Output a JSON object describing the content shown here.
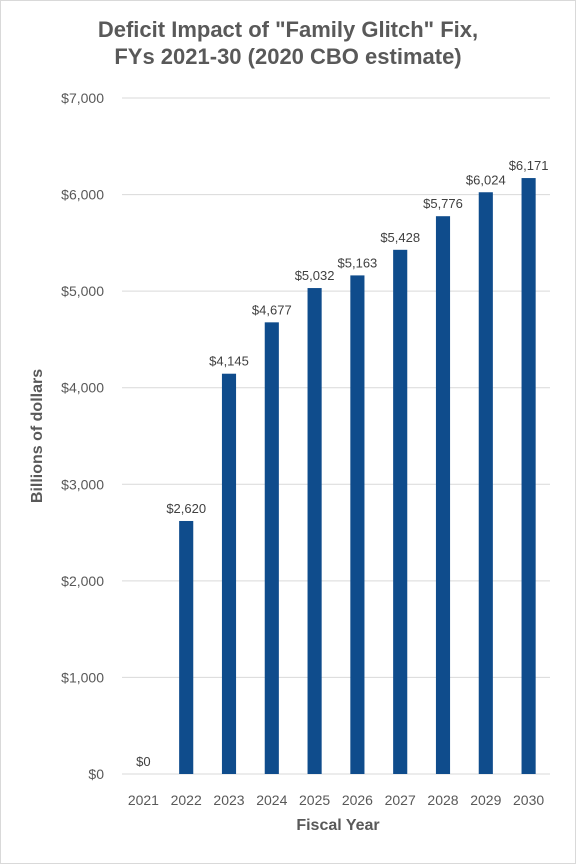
{
  "chart_data": {
    "type": "bar",
    "title_lines": [
      "Deficit Impact of \"Family Glitch\" Fix,",
      "FYs 2021-30 (2020 CBO estimate)"
    ],
    "xlabel": "Fiscal Year",
    "ylabel": "Billions of dollars",
    "categories": [
      "2021",
      "2022",
      "2023",
      "2024",
      "2025",
      "2026",
      "2027",
      "2028",
      "2029",
      "2030"
    ],
    "values": [
      0,
      2620,
      4145,
      4677,
      5032,
      5163,
      5428,
      5776,
      6024,
      6171
    ],
    "data_labels": [
      "$0",
      "$2,620",
      "$4,145",
      "$4,677",
      "$5,032",
      "$5,163",
      "$5,428",
      "$5,776",
      "$6,024",
      "$6,171"
    ],
    "y_ticks": [
      0,
      1000,
      2000,
      3000,
      4000,
      5000,
      6000,
      7000
    ],
    "y_tick_labels": [
      "$0",
      "$1,000",
      "$2,000",
      "$3,000",
      "$4,000",
      "$5,000",
      "$6,000",
      "$7,000"
    ],
    "ylim": [
      0,
      7000
    ],
    "grid": true,
    "legend": "none",
    "colors": {
      "bar": "#0f4c8c",
      "grid": "#d9d9d9",
      "text": "#595959"
    }
  }
}
